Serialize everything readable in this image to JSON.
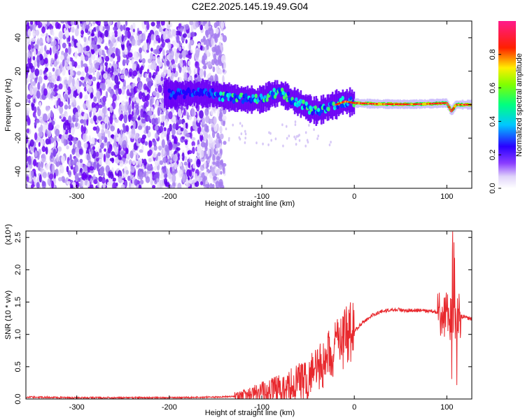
{
  "figure": {
    "title": "C2E2.2025.145.19.49.G04"
  },
  "chart_data": [
    {
      "type": "heatmap",
      "xlabel": "Height of straight line (km)",
      "ylabel": "Frequency (Hz)",
      "xlim": [
        -355,
        127
      ],
      "ylim": [
        -50,
        50
      ],
      "xticks": [
        -300,
        -200,
        -100,
        0,
        100
      ],
      "yticks": [
        -40,
        -20,
        0,
        20,
        40
      ],
      "colorbar": {
        "label": "Normalized spectral amplitude",
        "range": [
          0.0,
          1.0
        ],
        "ticks": [
          0.0,
          0.2,
          0.4,
          0.6,
          0.8
        ],
        "colors": [
          "#ffffff",
          "#b8a2f0",
          "#6a00ff",
          "#0000ff",
          "#00ffff",
          "#00ff00",
          "#ffff00",
          "#ff0000",
          "#ff0080"
        ]
      },
      "ridge": {
        "x": [
          -200,
          -170,
          -150,
          -130,
          -115,
          -100,
          -90,
          -80,
          -70,
          -60,
          -50,
          -40,
          -30,
          -20,
          -10,
          0,
          20,
          40,
          60,
          80,
          100,
          105,
          110,
          127
        ],
        "frequency": [
          6,
          7,
          6,
          4,
          3,
          3,
          6,
          7,
          4,
          1,
          -2,
          -4,
          -2,
          0,
          2,
          1,
          0.5,
          0.3,
          0.2,
          0.5,
          1,
          -4,
          0,
          0
        ]
      }
    },
    {
      "type": "line",
      "xlabel": "Height of straight line (km)",
      "ylabel": "SNR (10 * v/v)",
      "y_multiplier": "(x10⁴)",
      "xlim": [
        -355,
        127
      ],
      "ylim": [
        0.0,
        2.6
      ],
      "xticks": [
        -300,
        -200,
        -100,
        0,
        100
      ],
      "yticks": [
        0.0,
        0.5,
        1.0,
        1.5,
        2.0,
        2.5
      ],
      "series": [
        {
          "color": "#e8282d",
          "x": [
            -355,
            -300,
            -250,
            -200,
            -150,
            -120,
            -100,
            -80,
            -60,
            -50,
            -40,
            -30,
            -20,
            -10,
            0,
            10,
            20,
            30,
            40,
            50,
            60,
            70,
            80,
            90,
            95,
            100,
            105,
            110,
            115,
            127
          ],
          "values": [
            0.03,
            0.02,
            0.02,
            0.02,
            0.03,
            0.05,
            0.1,
            0.15,
            0.25,
            0.3,
            0.45,
            0.6,
            0.8,
            0.95,
            1.05,
            1.2,
            1.3,
            1.36,
            1.38,
            1.38,
            1.37,
            1.37,
            1.36,
            1.35,
            1.3,
            1.3,
            1.2,
            1.3,
            1.28,
            1.24
          ]
        }
      ]
    }
  ]
}
